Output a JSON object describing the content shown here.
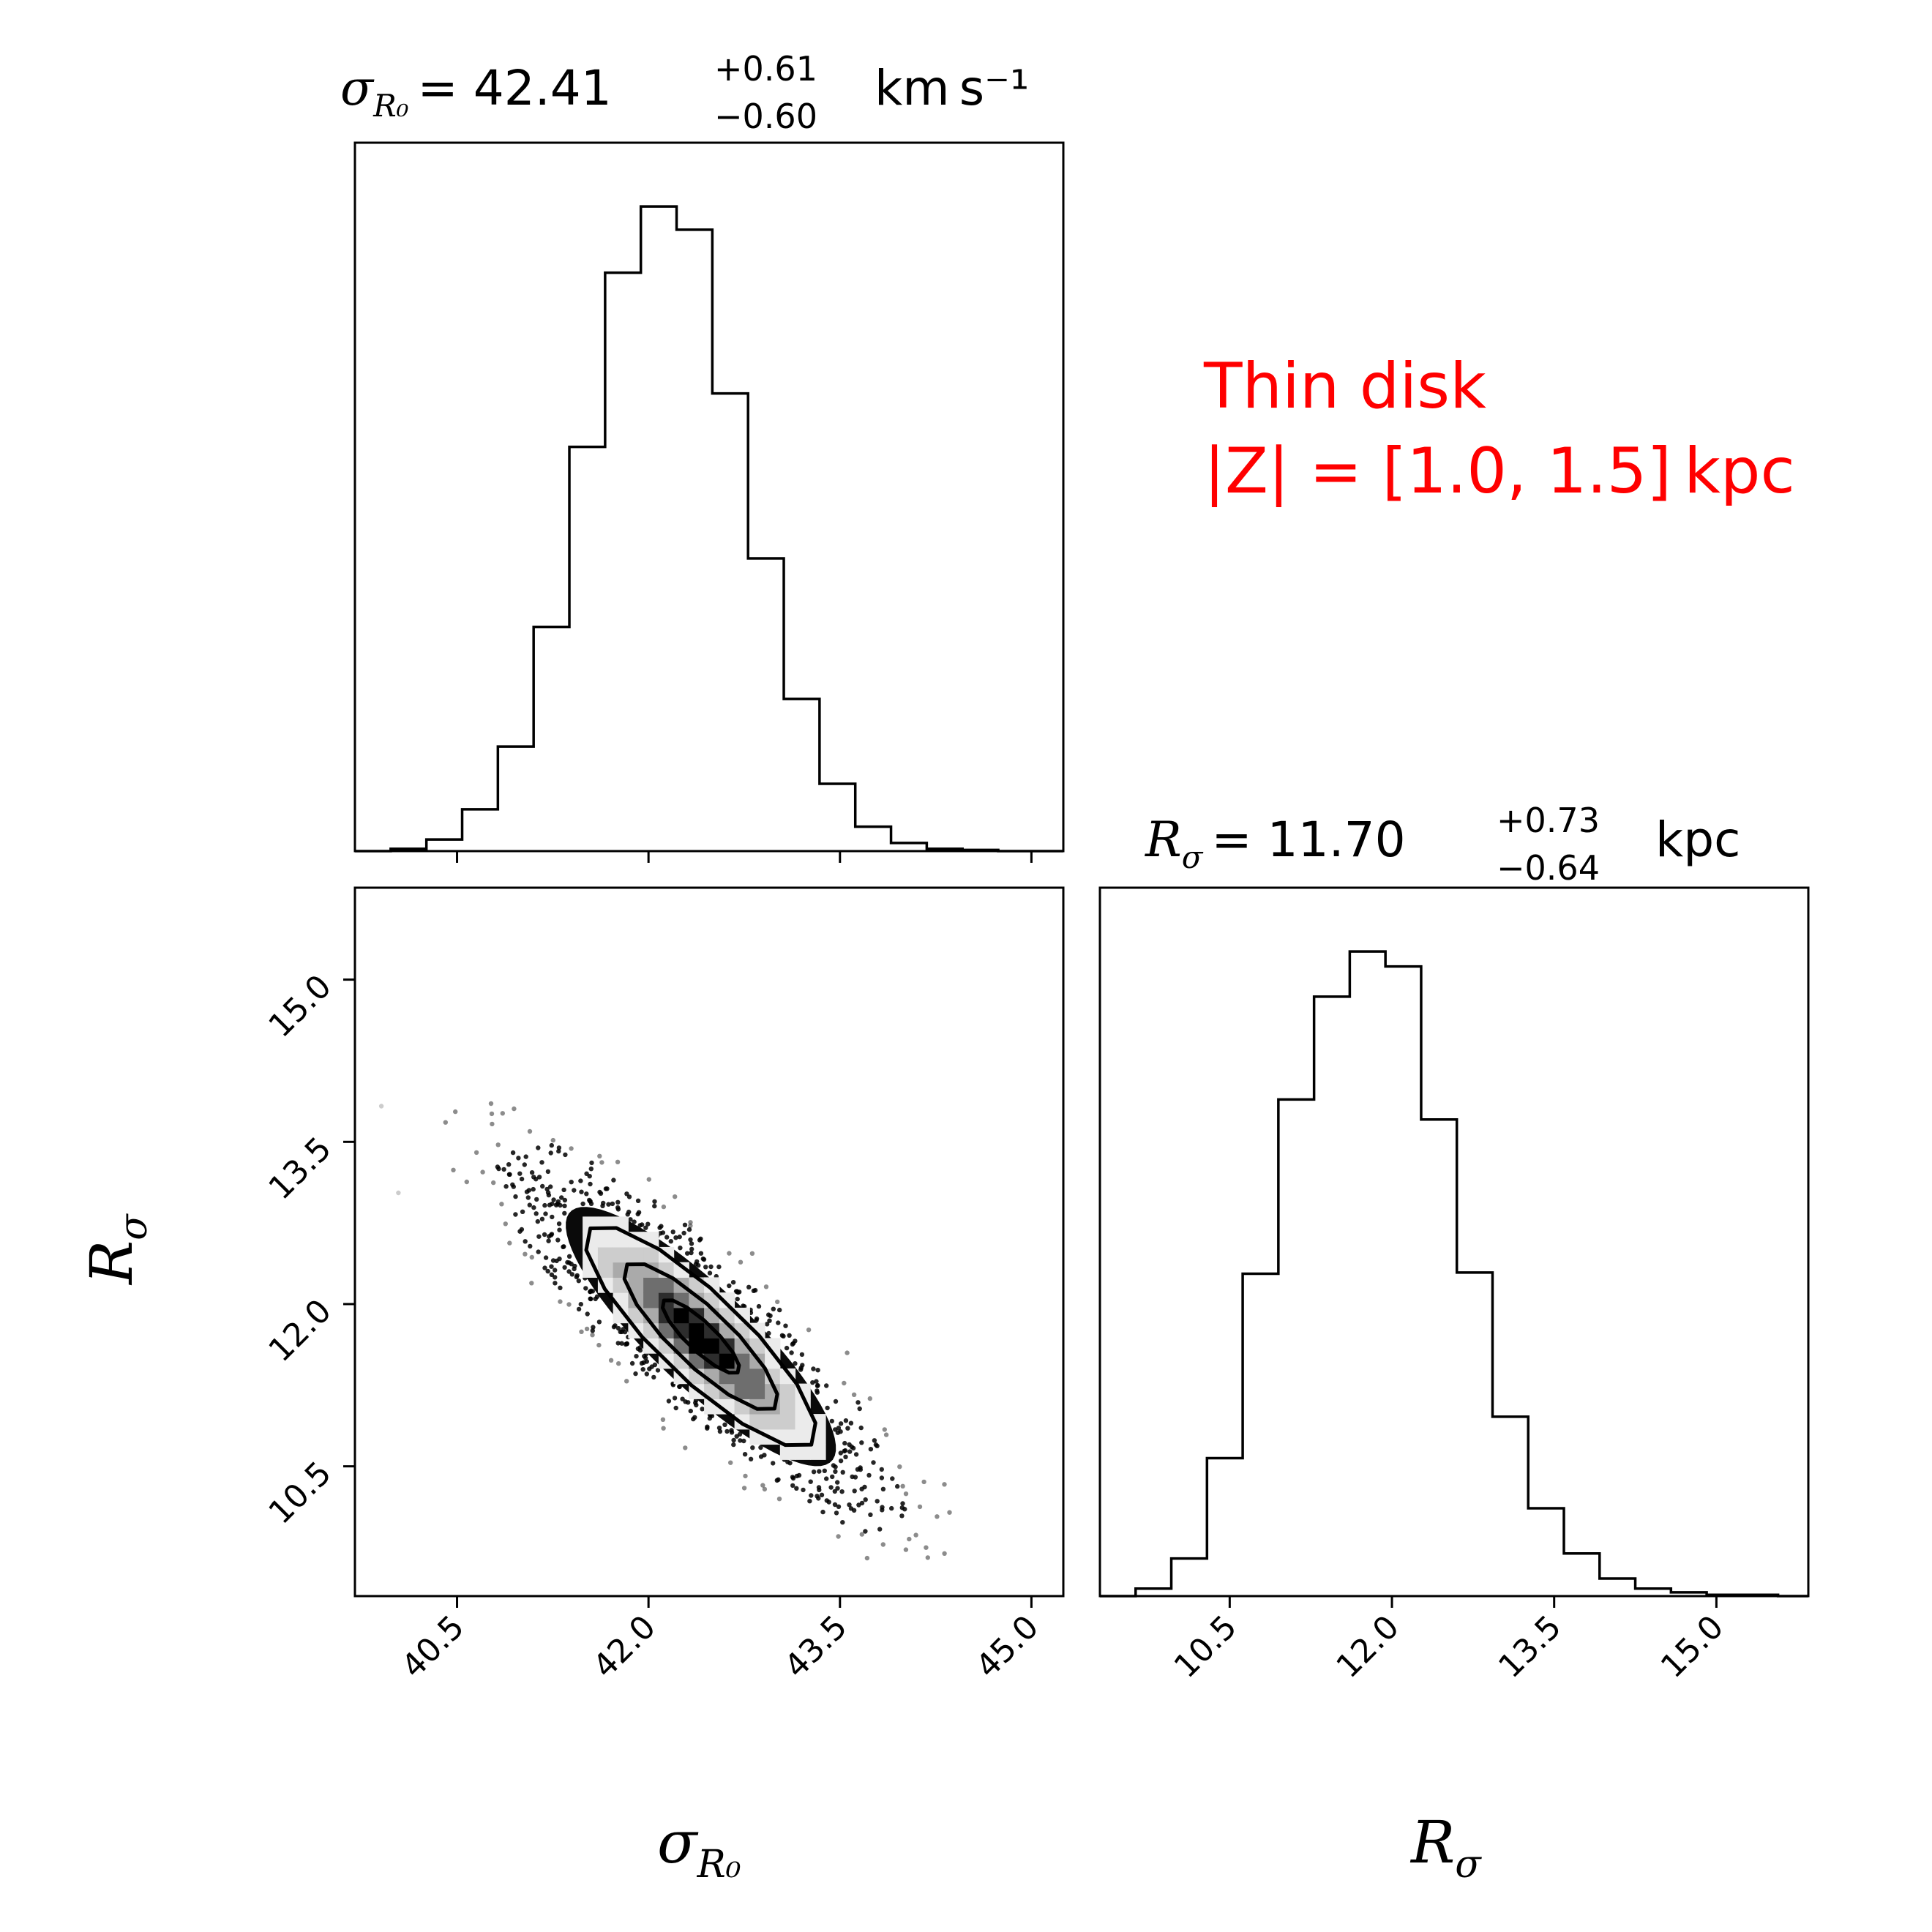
{
  "annotation": {
    "line1": "Thin disk",
    "line2": "|Z| = [1.0, 1.5] kpc",
    "color": "#ff0000"
  },
  "chart_data": [
    {
      "type": "histogram",
      "panel": "top-left",
      "title": {
        "symbol": "σ",
        "symbol_sub": "R₀",
        "equals": "= 42.41",
        "plus": "+0.61",
        "minus": "−0.60",
        "unit": "km s⁻¹"
      },
      "xlim": [
        39.7,
        45.25
      ],
      "bin_edges": [
        39.7,
        39.98,
        40.26,
        40.54,
        40.82,
        41.1,
        41.38,
        41.66,
        41.94,
        42.22,
        42.5,
        42.78,
        43.06,
        43.34,
        43.62,
        43.9,
        44.18,
        44.46,
        44.74,
        45.02,
        45.25
      ],
      "counts": [
        0,
        2,
        10,
        36,
        90,
        193,
        348,
        498,
        555,
        535,
        394,
        252,
        131,
        58,
        21,
        7,
        2,
        1,
        0,
        0
      ],
      "xticks": [
        40.5,
        42.0,
        43.5,
        45.0
      ]
    },
    {
      "type": "scatter-density",
      "panel": "bottom-left",
      "xlabel": "σ",
      "xlabel_sub": "R₀",
      "ylabel": "R",
      "ylabel_sub": "σ",
      "xlim": [
        39.7,
        45.25
      ],
      "ylim": [
        9.3,
        15.85
      ],
      "center": [
        42.41,
        11.7
      ],
      "sigma_x": 0.605,
      "sigma_y": 0.685,
      "correlation": -0.86,
      "contour_levels_sigma": [
        0.5,
        1.0,
        1.5
      ],
      "xticks": [
        40.5,
        42.0,
        43.5,
        45.0
      ],
      "yticks": [
        10.5,
        12.0,
        13.5,
        15.0
      ],
      "xtick_labels": [
        "40.5",
        "42.0",
        "43.5",
        "45.0"
      ],
      "ytick_labels": [
        "10.5",
        "12.0",
        "13.5",
        "15.0"
      ]
    },
    {
      "type": "histogram",
      "panel": "bottom-right",
      "title": {
        "symbol": "R",
        "symbol_sub": "σ",
        "equals": "= 11.70",
        "plus": "+0.73",
        "minus": "−0.64",
        "unit": "kpc"
      },
      "xlabel": "R",
      "xlabel_sub": "σ",
      "xlim": [
        9.3,
        15.85
      ],
      "bin_edges": [
        9.3,
        9.63,
        9.96,
        10.29,
        10.62,
        10.95,
        11.28,
        11.61,
        11.94,
        12.27,
        12.6,
        12.93,
        13.26,
        13.59,
        13.92,
        14.25,
        14.58,
        14.91,
        15.24,
        15.57,
        15.85
      ],
      "counts": [
        0,
        6,
        30,
        110,
        257,
        396,
        478,
        514,
        502,
        380,
        258,
        143,
        70,
        34,
        14,
        6,
        3,
        1,
        1,
        0
      ],
      "xticks": [
        10.5,
        12.0,
        13.5,
        15.0
      ],
      "xtick_labels": [
        "10.5",
        "12.0",
        "13.5",
        "15.0"
      ]
    }
  ]
}
